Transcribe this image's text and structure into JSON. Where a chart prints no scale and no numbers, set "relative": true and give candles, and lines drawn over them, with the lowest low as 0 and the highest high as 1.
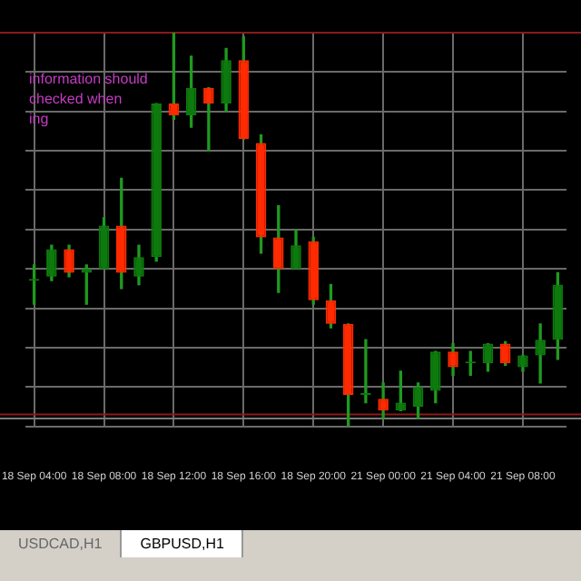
{
  "chart_data": {
    "type": "candlestick",
    "relative": true,
    "tick_labels": "x",
    "grid": true,
    "legend": false,
    "categories": [
      "18 Sep 04:00",
      null,
      null,
      null,
      "18 Sep 08:00",
      null,
      null,
      null,
      "18 Sep 12:00",
      null,
      null,
      null,
      "18 Sep 16:00",
      null,
      null,
      null,
      "18 Sep 20:00",
      null,
      null,
      null,
      "21 Sep 00:00",
      null,
      null,
      null,
      "21 Sep 04:00",
      null,
      null,
      null,
      "21 Sep 08:00",
      null,
      null
    ],
    "ohlc": [
      [
        0.37,
        0.41,
        0.31,
        0.37
      ],
      [
        0.38,
        0.46,
        0.37,
        0.45
      ],
      [
        0.45,
        0.46,
        0.38,
        0.39
      ],
      [
        0.39,
        0.41,
        0.31,
        0.4
      ],
      [
        0.4,
        0.53,
        0.4,
        0.51
      ],
      [
        0.51,
        0.63,
        0.35,
        0.39
      ],
      [
        0.38,
        0.46,
        0.36,
        0.43
      ],
      [
        0.43,
        0.82,
        0.42,
        0.82
      ],
      [
        0.82,
        1,
        0.78,
        0.79
      ],
      [
        0.79,
        0.94,
        0.76,
        0.86
      ],
      [
        0.86,
        0.86,
        0.7,
        0.82
      ],
      [
        0.82,
        0.96,
        0.8,
        0.93
      ],
      [
        0.93,
        0.99,
        0.73,
        0.73
      ],
      [
        0.72,
        0.74,
        0.44,
        0.48
      ],
      [
        0.48,
        0.56,
        0.34,
        0.4
      ],
      [
        0.4,
        0.5,
        0.4,
        0.46
      ],
      [
        0.47,
        0.48,
        0.31,
        0.32
      ],
      [
        0.32,
        0.36,
        0.25,
        0.26
      ],
      [
        0.26,
        0.26,
        0,
        0.08
      ],
      [
        0.08,
        0.22,
        0.06,
        0.08
      ],
      [
        0.07,
        0.11,
        0.02,
        0.04
      ],
      [
        0.04,
        0.14,
        0.04,
        0.06
      ],
      [
        0.05,
        0.11,
        0.02,
        0.1
      ],
      [
        0.09,
        0.19,
        0.06,
        0.19
      ],
      [
        0.19,
        0.21,
        0.13,
        0.15
      ],
      [
        0.16,
        0.19,
        0.13,
        0.16
      ],
      [
        0.16,
        0.21,
        0.14,
        0.21
      ],
      [
        0.21,
        0.215,
        0.155,
        0.16
      ],
      [
        0.15,
        0.18,
        0.14,
        0.18
      ],
      [
        0.18,
        0.26,
        0.11,
        0.22
      ],
      [
        0.22,
        0.39,
        0.17,
        0.36
      ]
    ],
    "color": "#1f9a1f",
    "colors": [
      "#0d7a0d",
      "#0d7a0d",
      "#ff2a00",
      "#0d7a0d",
      "#0d7a0d",
      "#ff2a00",
      "#0d7a0d",
      "#0d7a0d",
      "#ff2a00",
      "#0d7a0d",
      "#ff2a00",
      "#0d7a0d",
      "#ff2a00",
      "#ff2a00",
      "#ff2a00",
      "#0d7a0d",
      "#ff2a00",
      "#ff2a00",
      "#ff2a00",
      "#0d7a0d",
      "#ff2a00",
      "#0d7a0d",
      "#0d7a0d",
      "#0d7a0d",
      "#ff2a00",
      "#0d7a0d",
      "#0d7a0d",
      "#ff2a00",
      "#0d7a0d",
      "#0d7a0d",
      "#0d7a0d"
    ],
    "ref_lines": [
      {
        "axis": "y",
        "value": 1,
        "color": "#8b1a1a"
      },
      {
        "axis": "y",
        "value": 0.03,
        "color": "#8b1a1a"
      },
      {
        "axis": "y",
        "value": 0.02,
        "color": "#7a7a7a"
      }
    ],
    "annotations": [
      "information should\nchecked when\ning",
      "USDCAD,H1",
      "GBPUSD,H1"
    ]
  }
}
